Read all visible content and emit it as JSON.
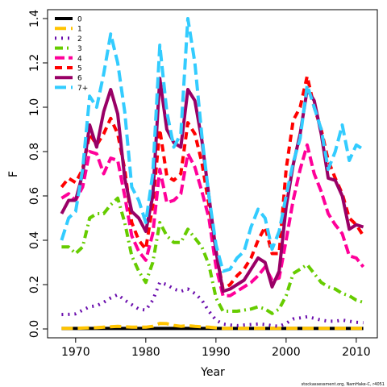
{
  "chart_data": {
    "type": "line",
    "xlabel": "Year",
    "ylabel": "F",
    "xlim": [
      1966,
      2013
    ],
    "ylim": [
      -0.04,
      1.44
    ],
    "xticks": [
      1970,
      1980,
      1990,
      2000,
      2010
    ],
    "yticks": [
      0.0,
      0.2,
      0.4,
      0.6,
      0.8,
      1.0,
      1.2,
      1.4
    ],
    "ytick_labels": [
      "0.0",
      "0.2",
      "0.4",
      "0.6",
      "0.8",
      "1.0",
      "1.2",
      "1.4"
    ],
    "legend_position": "top-left",
    "credit": "stockassessment.org, NamHake-C, r4051",
    "x": [
      1968,
      1969,
      1970,
      1971,
      1972,
      1973,
      1974,
      1975,
      1976,
      1977,
      1978,
      1979,
      1980,
      1981,
      1982,
      1983,
      1984,
      1985,
      1986,
      1987,
      1988,
      1989,
      1990,
      1991,
      1992,
      1993,
      1994,
      1995,
      1996,
      1997,
      1998,
      1999,
      2000,
      2001,
      2002,
      2003,
      2004,
      2005,
      2006,
      2007,
      2008,
      2009,
      2010,
      2011
    ],
    "series": [
      {
        "name": "0",
        "color": "#000000",
        "dash": "solid",
        "values": [
          0.002,
          0.002,
          0.002,
          0.002,
          0.002,
          0.002,
          0.002,
          0.002,
          0.002,
          0.002,
          0.002,
          0.002,
          0.002,
          0.002,
          0.002,
          0.002,
          0.002,
          0.002,
          0.002,
          0.002,
          0.002,
          0.002,
          0.002,
          0.002,
          0.002,
          0.002,
          0.002,
          0.002,
          0.002,
          0.002,
          0.002,
          0.002,
          0.002,
          0.002,
          0.002,
          0.002,
          0.002,
          0.002,
          0.002,
          0.002,
          0.002,
          0.002,
          0.002,
          0.002
        ]
      },
      {
        "name": "1",
        "color": "#ffc400",
        "dash": "long",
        "values": [
          0.003,
          0.003,
          0.003,
          0.004,
          0.005,
          0.006,
          0.008,
          0.01,
          0.012,
          0.01,
          0.008,
          0.008,
          0.008,
          0.012,
          0.025,
          0.024,
          0.016,
          0.012,
          0.015,
          0.012,
          0.01,
          0.008,
          0.005,
          0.003,
          0.003,
          0.003,
          0.003,
          0.003,
          0.003,
          0.003,
          0.003,
          0.003,
          0.003,
          0.003,
          0.003,
          0.003,
          0.003,
          0.003,
          0.003,
          0.003,
          0.003,
          0.003,
          0.003,
          0.003
        ]
      },
      {
        "name": "2",
        "color": "#6a0dad",
        "dash": "dot",
        "values": [
          0.065,
          0.066,
          0.068,
          0.085,
          0.1,
          0.105,
          0.12,
          0.14,
          0.155,
          0.13,
          0.11,
          0.09,
          0.085,
          0.13,
          0.21,
          0.2,
          0.18,
          0.17,
          0.18,
          0.16,
          0.13,
          0.08,
          0.04,
          0.022,
          0.018,
          0.015,
          0.018,
          0.02,
          0.022,
          0.02,
          0.015,
          0.012,
          0.025,
          0.045,
          0.05,
          0.055,
          0.048,
          0.04,
          0.035,
          0.035,
          0.04,
          0.035,
          0.03,
          0.028
        ]
      },
      {
        "name": "3",
        "color": "#66cc00",
        "dash": "dashdot",
        "values": [
          0.37,
          0.37,
          0.34,
          0.37,
          0.5,
          0.52,
          0.52,
          0.56,
          0.59,
          0.48,
          0.33,
          0.26,
          0.21,
          0.3,
          0.48,
          0.42,
          0.39,
          0.39,
          0.45,
          0.41,
          0.37,
          0.29,
          0.14,
          0.08,
          0.08,
          0.08,
          0.085,
          0.09,
          0.1,
          0.09,
          0.07,
          0.09,
          0.15,
          0.25,
          0.27,
          0.29,
          0.25,
          0.21,
          0.19,
          0.18,
          0.16,
          0.15,
          0.13,
          0.12
        ]
      },
      {
        "name": "4",
        "color": "#ff0099",
        "dash": "longdash",
        "values": [
          0.59,
          0.61,
          0.58,
          0.64,
          0.8,
          0.79,
          0.7,
          0.77,
          0.76,
          0.6,
          0.42,
          0.35,
          0.31,
          0.43,
          0.72,
          0.57,
          0.58,
          0.61,
          0.79,
          0.73,
          0.62,
          0.5,
          0.28,
          0.15,
          0.15,
          0.17,
          0.19,
          0.21,
          0.24,
          0.28,
          0.22,
          0.23,
          0.4,
          0.58,
          0.72,
          0.83,
          0.7,
          0.62,
          0.52,
          0.47,
          0.43,
          0.33,
          0.32,
          0.28
        ]
      },
      {
        "name": "5",
        "color": "#ff0000",
        "dash": "dashed",
        "values": [
          0.64,
          0.68,
          0.66,
          0.72,
          0.88,
          0.83,
          0.88,
          0.95,
          0.88,
          0.72,
          0.48,
          0.4,
          0.36,
          0.56,
          0.9,
          0.69,
          0.67,
          0.7,
          0.93,
          0.88,
          0.75,
          0.56,
          0.35,
          0.18,
          0.2,
          0.24,
          0.27,
          0.32,
          0.4,
          0.46,
          0.34,
          0.34,
          0.72,
          0.94,
          1.0,
          1.14,
          1.0,
          0.9,
          0.76,
          0.68,
          0.61,
          0.5,
          0.47,
          0.42
        ]
      },
      {
        "name": "6",
        "color": "#990066",
        "dash": "solid",
        "values": [
          0.52,
          0.58,
          0.58,
          0.7,
          0.92,
          0.82,
          0.98,
          1.08,
          0.97,
          0.68,
          0.53,
          0.5,
          0.44,
          0.6,
          1.13,
          0.9,
          0.84,
          0.82,
          1.08,
          1.03,
          0.85,
          0.6,
          0.35,
          0.17,
          0.18,
          0.2,
          0.22,
          0.27,
          0.32,
          0.3,
          0.19,
          0.26,
          0.55,
          0.74,
          0.88,
          1.08,
          1.03,
          0.88,
          0.68,
          0.67,
          0.6,
          0.45,
          0.47,
          0.46
        ]
      },
      {
        "name": "7+",
        "color": "#33ccff",
        "dash": "long",
        "values": [
          0.4,
          0.5,
          0.53,
          0.72,
          1.05,
          1.0,
          1.15,
          1.33,
          1.2,
          0.98,
          0.64,
          0.58,
          0.48,
          0.7,
          1.28,
          0.98,
          0.82,
          0.88,
          1.4,
          1.2,
          0.87,
          0.6,
          0.38,
          0.26,
          0.27,
          0.32,
          0.35,
          0.46,
          0.54,
          0.5,
          0.36,
          0.44,
          0.6,
          0.75,
          0.86,
          1.1,
          1.0,
          0.9,
          0.72,
          0.8,
          0.92,
          0.76,
          0.83,
          0.81
        ]
      }
    ]
  }
}
